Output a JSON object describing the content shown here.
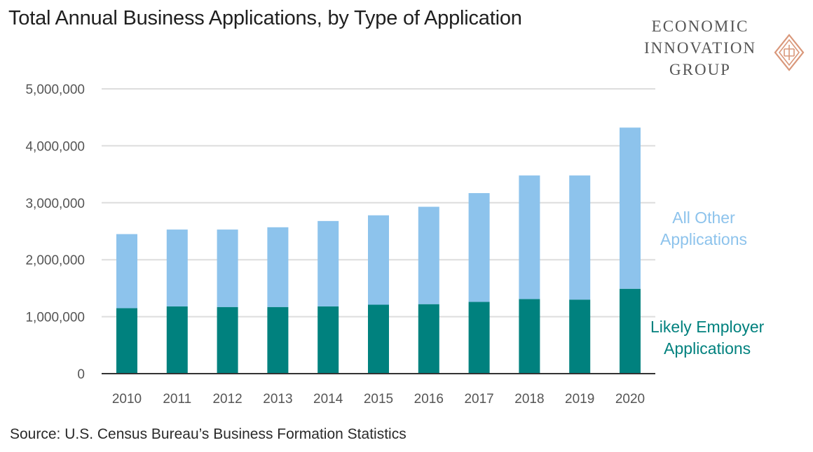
{
  "title": "Total Annual Business Applications, by Type of Application",
  "source": "Source: U.S. Census Bureau’s Business Formation Statistics",
  "logo": {
    "lines": [
      "ECONOMIC",
      "INNOVATION",
      "GROUP"
    ],
    "icon": "diamond-logo-icon",
    "color": "#d9977a"
  },
  "colors": {
    "likely_employer": "#00817e",
    "all_other": "#8dc3ec",
    "grid": "#dddddd",
    "axis": "#333333"
  },
  "series_labels": {
    "all_other": [
      "All Other",
      "Applications"
    ],
    "likely_employer": [
      "Likely Employer",
      "Applications"
    ]
  },
  "chart_data": {
    "type": "bar",
    "stacked": true,
    "title": "Total Annual Business Applications, by Type of Application",
    "xlabel": "",
    "ylabel": "",
    "ylim": [
      0,
      5000000
    ],
    "yticks": [
      0,
      1000000,
      2000000,
      3000000,
      4000000,
      5000000
    ],
    "ytick_labels": [
      "0",
      "1,000,000",
      "2,000,000",
      "3,000,000",
      "4,000,000",
      "5,000,000"
    ],
    "grid": true,
    "categories": [
      "2010",
      "2011",
      "2012",
      "2013",
      "2014",
      "2015",
      "2016",
      "2017",
      "2018",
      "2019",
      "2020"
    ],
    "series": [
      {
        "name": "Likely Employer Applications",
        "values": [
          1150000,
          1180000,
          1170000,
          1170000,
          1180000,
          1210000,
          1220000,
          1260000,
          1310000,
          1300000,
          1490000
        ]
      },
      {
        "name": "All Other Applications",
        "values": [
          1300000,
          1350000,
          1360000,
          1400000,
          1500000,
          1570000,
          1710000,
          1910000,
          2170000,
          2180000,
          2830000
        ]
      }
    ],
    "legend": "right"
  }
}
